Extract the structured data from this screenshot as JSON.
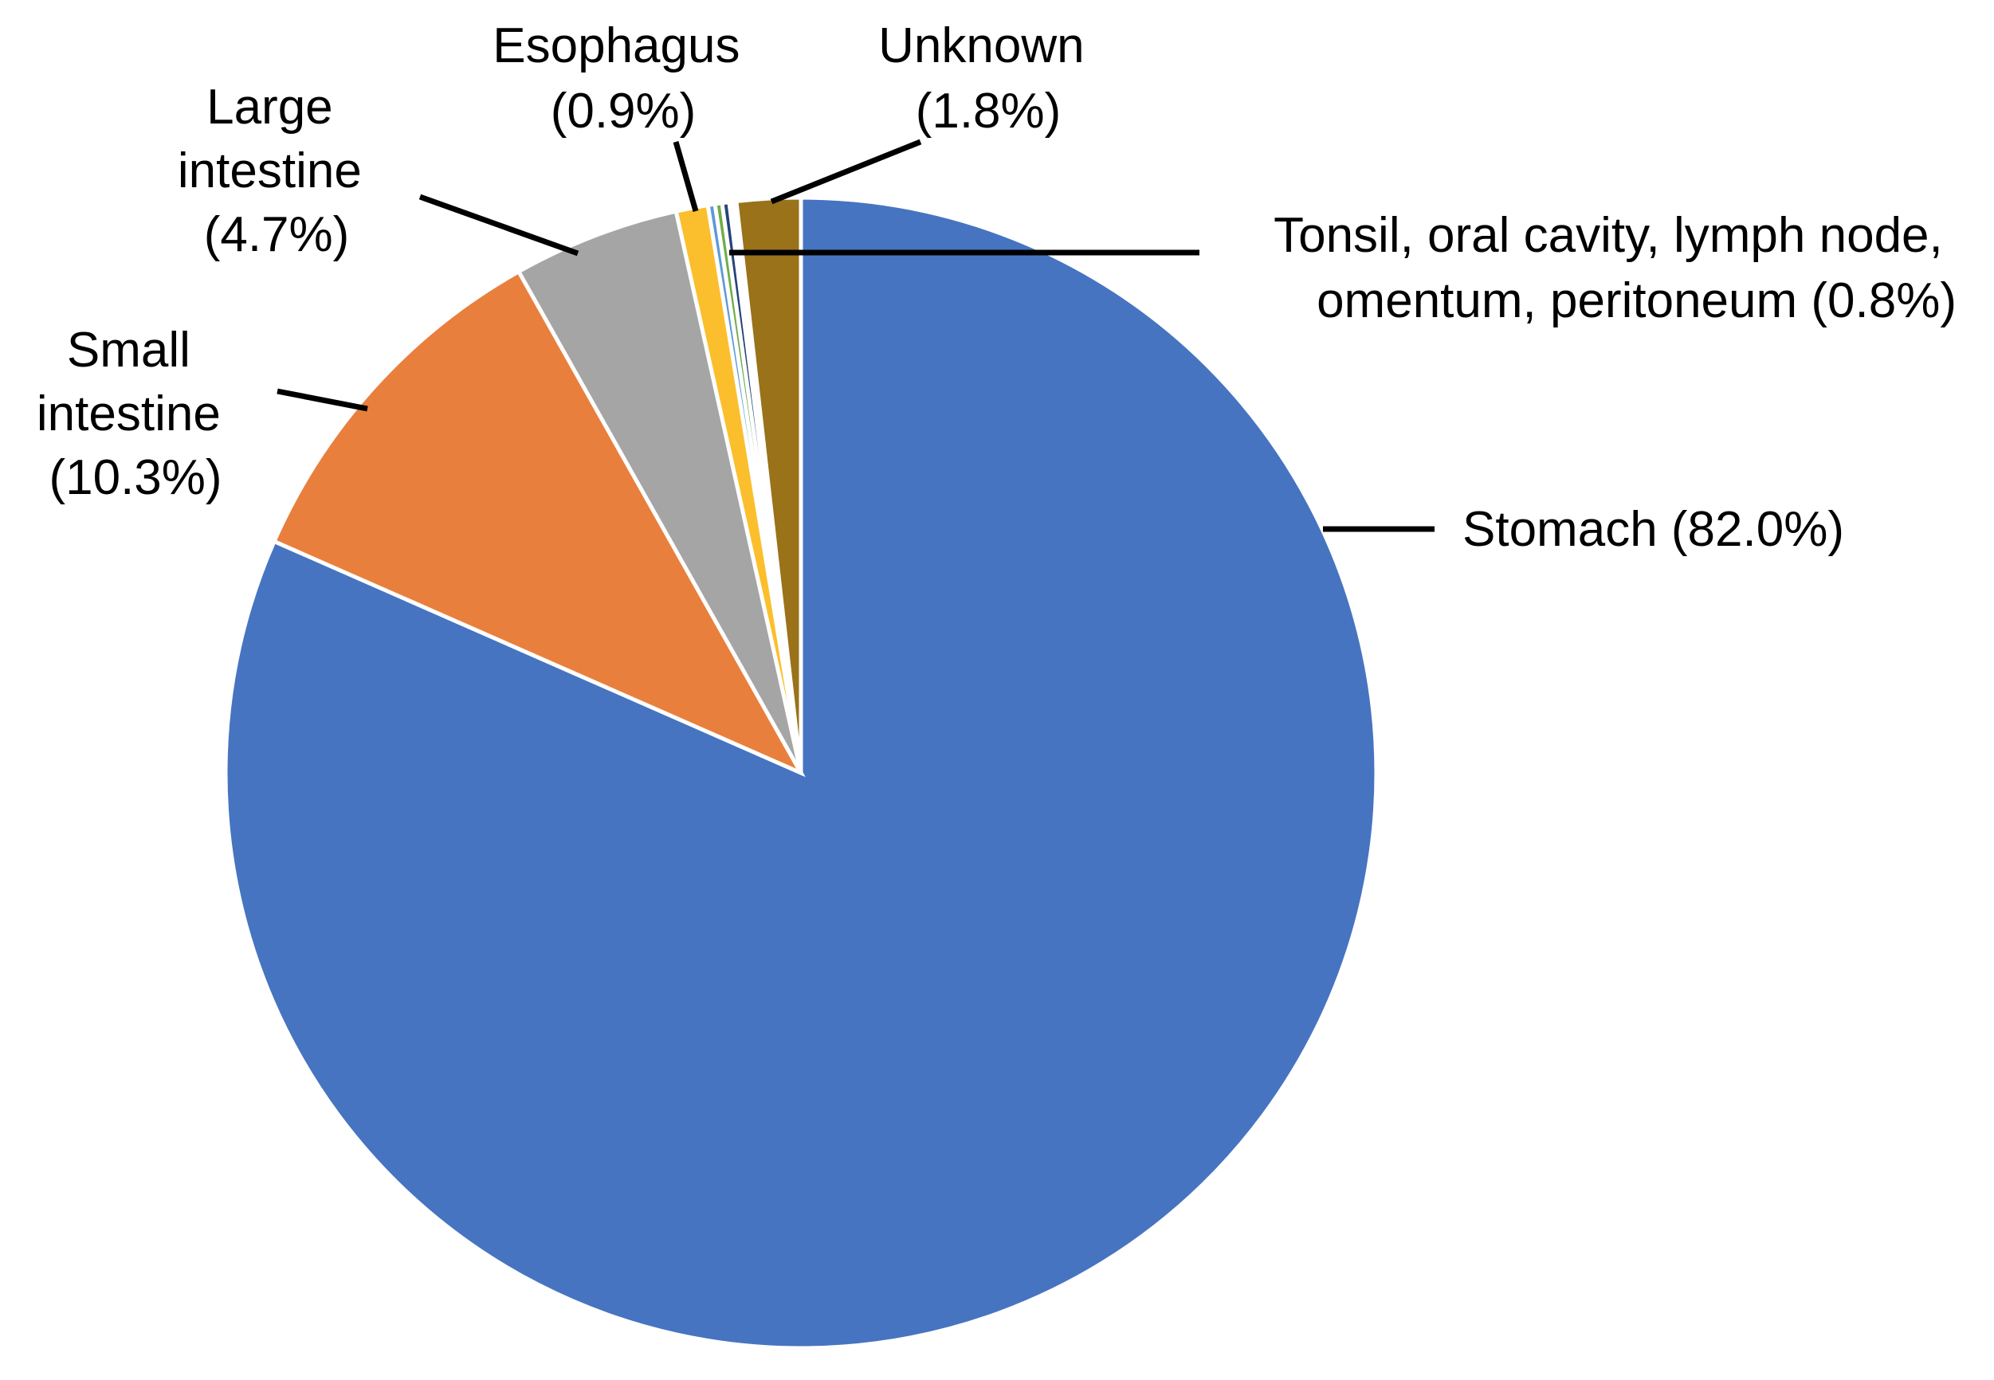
{
  "chart_data": {
    "type": "pie",
    "title": "",
    "start_angle_deg": 0,
    "direction": "clockwise",
    "slices": [
      {
        "key": "stomach",
        "label": [
          "Stomach (82.0%)"
        ],
        "value": 82.0,
        "color": "#4674C1"
      },
      {
        "key": "small-intestine",
        "label": [
          "Small",
          "intestine",
          "(10.3%)"
        ],
        "value": 10.3,
        "color": "#E97F3D"
      },
      {
        "key": "large-intestine",
        "label": [
          "Large",
          "intestine",
          "(4.7%)"
        ],
        "value": 4.7,
        "color": "#A5A5A5"
      },
      {
        "key": "esophagus",
        "label": [
          "Esophagus",
          "(0.9%)"
        ],
        "value": 0.9,
        "color": "#FBBF2D"
      },
      {
        "key": "tonsil",
        "label": [],
        "value": 0.2,
        "color": "#5B9BD5"
      },
      {
        "key": "oral-cavity",
        "label": [],
        "value": 0.2,
        "color": "#70AD47"
      },
      {
        "key": "lymph-node",
        "label": [],
        "value": 0.2,
        "color": "#264478"
      },
      {
        "key": "omentum",
        "label": [],
        "value": 0.1,
        "color": "#9E480E"
      },
      {
        "key": "peritoneum",
        "label": [],
        "value": 0.1,
        "color": "#636363"
      },
      {
        "key": "unknown",
        "label": [
          "Unknown",
          "(1.8%)"
        ],
        "value": 1.8,
        "color": "#997219"
      }
    ],
    "group_labels": [
      {
        "key": "tonsil-group",
        "label": [
          "Tonsil, oral cavity, lymph node,",
          "omentum, peritoneum (0.8%)"
        ]
      }
    ]
  }
}
